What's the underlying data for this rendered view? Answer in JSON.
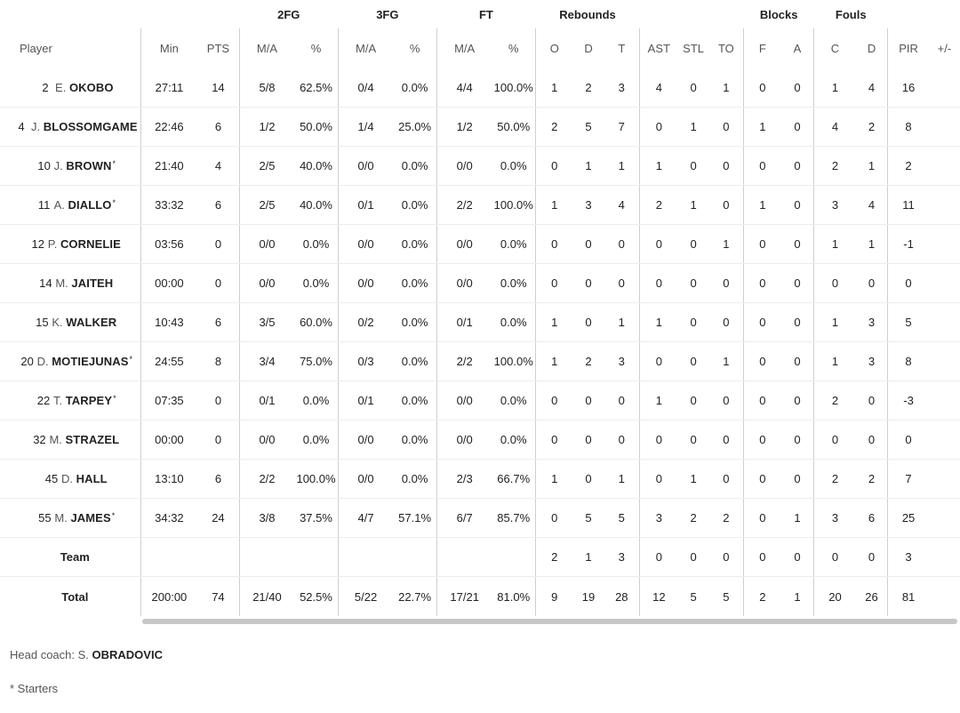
{
  "groups": {
    "fg2": "2FG",
    "fg3": "3FG",
    "ft": "FT",
    "rebounds": "Rebounds",
    "blocks": "Blocks",
    "fouls": "Fouls"
  },
  "columns": {
    "player": "Player",
    "min": "Min",
    "pts": "PTS",
    "fg2_ma": "M/A",
    "fg2_pct": "%",
    "fg3_ma": "M/A",
    "fg3_pct": "%",
    "ft_ma": "M/A",
    "ft_pct": "%",
    "reb_o": "O",
    "reb_d": "D",
    "reb_t": "T",
    "ast": "AST",
    "stl": "STL",
    "to": "TO",
    "blk_f": "F",
    "blk_a": "A",
    "foul_c": "C",
    "foul_d": "D",
    "pir": "PIR",
    "pm": "+/-"
  },
  "players": [
    {
      "num": "2",
      "first": "E.",
      "last": "OKOBO",
      "star": "",
      "min": "27:11",
      "pts": "14",
      "fg2_ma": "5/8",
      "fg2_pct": "62.5%",
      "fg3_ma": "0/4",
      "fg3_pct": "0.0%",
      "ft_ma": "4/4",
      "ft_pct": "100.0%",
      "reb_o": "1",
      "reb_d": "2",
      "reb_t": "3",
      "ast": "4",
      "stl": "0",
      "to": "1",
      "blk_f": "0",
      "blk_a": "0",
      "foul_c": "1",
      "foul_d": "4",
      "pir": "16"
    },
    {
      "num": "4",
      "first": "J.",
      "last": "BLOSSOMGAME",
      "star": "",
      "min": "22:46",
      "pts": "6",
      "fg2_ma": "1/2",
      "fg2_pct": "50.0%",
      "fg3_ma": "1/4",
      "fg3_pct": "25.0%",
      "ft_ma": "1/2",
      "ft_pct": "50.0%",
      "reb_o": "2",
      "reb_d": "5",
      "reb_t": "7",
      "ast": "0",
      "stl": "1",
      "to": "0",
      "blk_f": "1",
      "blk_a": "0",
      "foul_c": "4",
      "foul_d": "2",
      "pir": "8"
    },
    {
      "num": "10",
      "first": "J.",
      "last": "BROWN",
      "star": "*",
      "min": "21:40",
      "pts": "4",
      "fg2_ma": "2/5",
      "fg2_pct": "40.0%",
      "fg3_ma": "0/0",
      "fg3_pct": "0.0%",
      "ft_ma": "0/0",
      "ft_pct": "0.0%",
      "reb_o": "0",
      "reb_d": "1",
      "reb_t": "1",
      "ast": "1",
      "stl": "0",
      "to": "0",
      "blk_f": "0",
      "blk_a": "0",
      "foul_c": "2",
      "foul_d": "1",
      "pir": "2"
    },
    {
      "num": "11",
      "first": "A.",
      "last": "DIALLO",
      "star": "*",
      "min": "33:32",
      "pts": "6",
      "fg2_ma": "2/5",
      "fg2_pct": "40.0%",
      "fg3_ma": "0/1",
      "fg3_pct": "0.0%",
      "ft_ma": "2/2",
      "ft_pct": "100.0%",
      "reb_o": "1",
      "reb_d": "3",
      "reb_t": "4",
      "ast": "2",
      "stl": "1",
      "to": "0",
      "blk_f": "1",
      "blk_a": "0",
      "foul_c": "3",
      "foul_d": "4",
      "pir": "11"
    },
    {
      "num": "12",
      "first": "P.",
      "last": "CORNELIE",
      "star": "",
      "min": "03:56",
      "pts": "0",
      "fg2_ma": "0/0",
      "fg2_pct": "0.0%",
      "fg3_ma": "0/0",
      "fg3_pct": "0.0%",
      "ft_ma": "0/0",
      "ft_pct": "0.0%",
      "reb_o": "0",
      "reb_d": "0",
      "reb_t": "0",
      "ast": "0",
      "stl": "0",
      "to": "1",
      "blk_f": "0",
      "blk_a": "0",
      "foul_c": "1",
      "foul_d": "1",
      "pir": "-1"
    },
    {
      "num": "14",
      "first": "M.",
      "last": "JAITEH",
      "star": "",
      "min": "00:00",
      "pts": "0",
      "fg2_ma": "0/0",
      "fg2_pct": "0.0%",
      "fg3_ma": "0/0",
      "fg3_pct": "0.0%",
      "ft_ma": "0/0",
      "ft_pct": "0.0%",
      "reb_o": "0",
      "reb_d": "0",
      "reb_t": "0",
      "ast": "0",
      "stl": "0",
      "to": "0",
      "blk_f": "0",
      "blk_a": "0",
      "foul_c": "0",
      "foul_d": "0",
      "pir": "0"
    },
    {
      "num": "15",
      "first": "K.",
      "last": "WALKER",
      "star": "",
      "min": "10:43",
      "pts": "6",
      "fg2_ma": "3/5",
      "fg2_pct": "60.0%",
      "fg3_ma": "0/2",
      "fg3_pct": "0.0%",
      "ft_ma": "0/1",
      "ft_pct": "0.0%",
      "reb_o": "1",
      "reb_d": "0",
      "reb_t": "1",
      "ast": "1",
      "stl": "0",
      "to": "0",
      "blk_f": "0",
      "blk_a": "0",
      "foul_c": "1",
      "foul_d": "3",
      "pir": "5"
    },
    {
      "num": "20",
      "first": "D.",
      "last": "MOTIEJUNAS",
      "star": "*",
      "min": "24:55",
      "pts": "8",
      "fg2_ma": "3/4",
      "fg2_pct": "75.0%",
      "fg3_ma": "0/3",
      "fg3_pct": "0.0%",
      "ft_ma": "2/2",
      "ft_pct": "100.0%",
      "reb_o": "1",
      "reb_d": "2",
      "reb_t": "3",
      "ast": "0",
      "stl": "0",
      "to": "1",
      "blk_f": "0",
      "blk_a": "0",
      "foul_c": "1",
      "foul_d": "3",
      "pir": "8"
    },
    {
      "num": "22",
      "first": "T.",
      "last": "TARPEY",
      "star": "*",
      "min": "07:35",
      "pts": "0",
      "fg2_ma": "0/1",
      "fg2_pct": "0.0%",
      "fg3_ma": "0/1",
      "fg3_pct": "0.0%",
      "ft_ma": "0/0",
      "ft_pct": "0.0%",
      "reb_o": "0",
      "reb_d": "0",
      "reb_t": "0",
      "ast": "1",
      "stl": "0",
      "to": "0",
      "blk_f": "0",
      "blk_a": "0",
      "foul_c": "2",
      "foul_d": "0",
      "pir": "-3"
    },
    {
      "num": "32",
      "first": "M.",
      "last": "STRAZEL",
      "star": "",
      "min": "00:00",
      "pts": "0",
      "fg2_ma": "0/0",
      "fg2_pct": "0.0%",
      "fg3_ma": "0/0",
      "fg3_pct": "0.0%",
      "ft_ma": "0/0",
      "ft_pct": "0.0%",
      "reb_o": "0",
      "reb_d": "0",
      "reb_t": "0",
      "ast": "0",
      "stl": "0",
      "to": "0",
      "blk_f": "0",
      "blk_a": "0",
      "foul_c": "0",
      "foul_d": "0",
      "pir": "0"
    },
    {
      "num": "45",
      "first": "D.",
      "last": "HALL",
      "star": "",
      "min": "13:10",
      "pts": "6",
      "fg2_ma": "2/2",
      "fg2_pct": "100.0%",
      "fg3_ma": "0/0",
      "fg3_pct": "0.0%",
      "ft_ma": "2/3",
      "ft_pct": "66.7%",
      "reb_o": "1",
      "reb_d": "0",
      "reb_t": "1",
      "ast": "0",
      "stl": "1",
      "to": "0",
      "blk_f": "0",
      "blk_a": "0",
      "foul_c": "2",
      "foul_d": "2",
      "pir": "7"
    },
    {
      "num": "55",
      "first": "M.",
      "last": "JAMES",
      "star": "*",
      "min": "34:32",
      "pts": "24",
      "fg2_ma": "3/8",
      "fg2_pct": "37.5%",
      "fg3_ma": "4/7",
      "fg3_pct": "57.1%",
      "ft_ma": "6/7",
      "ft_pct": "85.7%",
      "reb_o": "0",
      "reb_d": "5",
      "reb_t": "5",
      "ast": "3",
      "stl": "2",
      "to": "2",
      "blk_f": "0",
      "blk_a": "1",
      "foul_c": "3",
      "foul_d": "6",
      "pir": "25"
    }
  ],
  "team": {
    "label": "Team",
    "reb_o": "2",
    "reb_d": "1",
    "reb_t": "3",
    "ast": "0",
    "stl": "0",
    "to": "0",
    "blk_f": "0",
    "blk_a": "0",
    "foul_c": "0",
    "foul_d": "0",
    "pir": "3"
  },
  "total": {
    "label": "Total",
    "min": "200:00",
    "pts": "74",
    "fg2_ma": "21/40",
    "fg2_pct": "52.5%",
    "fg3_ma": "5/22",
    "fg3_pct": "22.7%",
    "ft_ma": "17/21",
    "ft_pct": "81.0%",
    "reb_o": "9",
    "reb_d": "19",
    "reb_t": "28",
    "ast": "12",
    "stl": "5",
    "to": "5",
    "blk_f": "2",
    "blk_a": "1",
    "foul_c": "20",
    "foul_d": "26",
    "pir": "81"
  },
  "footer": {
    "coach_label": "Head coach: S.",
    "coach_name": "OBRADOVIC",
    "starters_note": "* Starters"
  }
}
